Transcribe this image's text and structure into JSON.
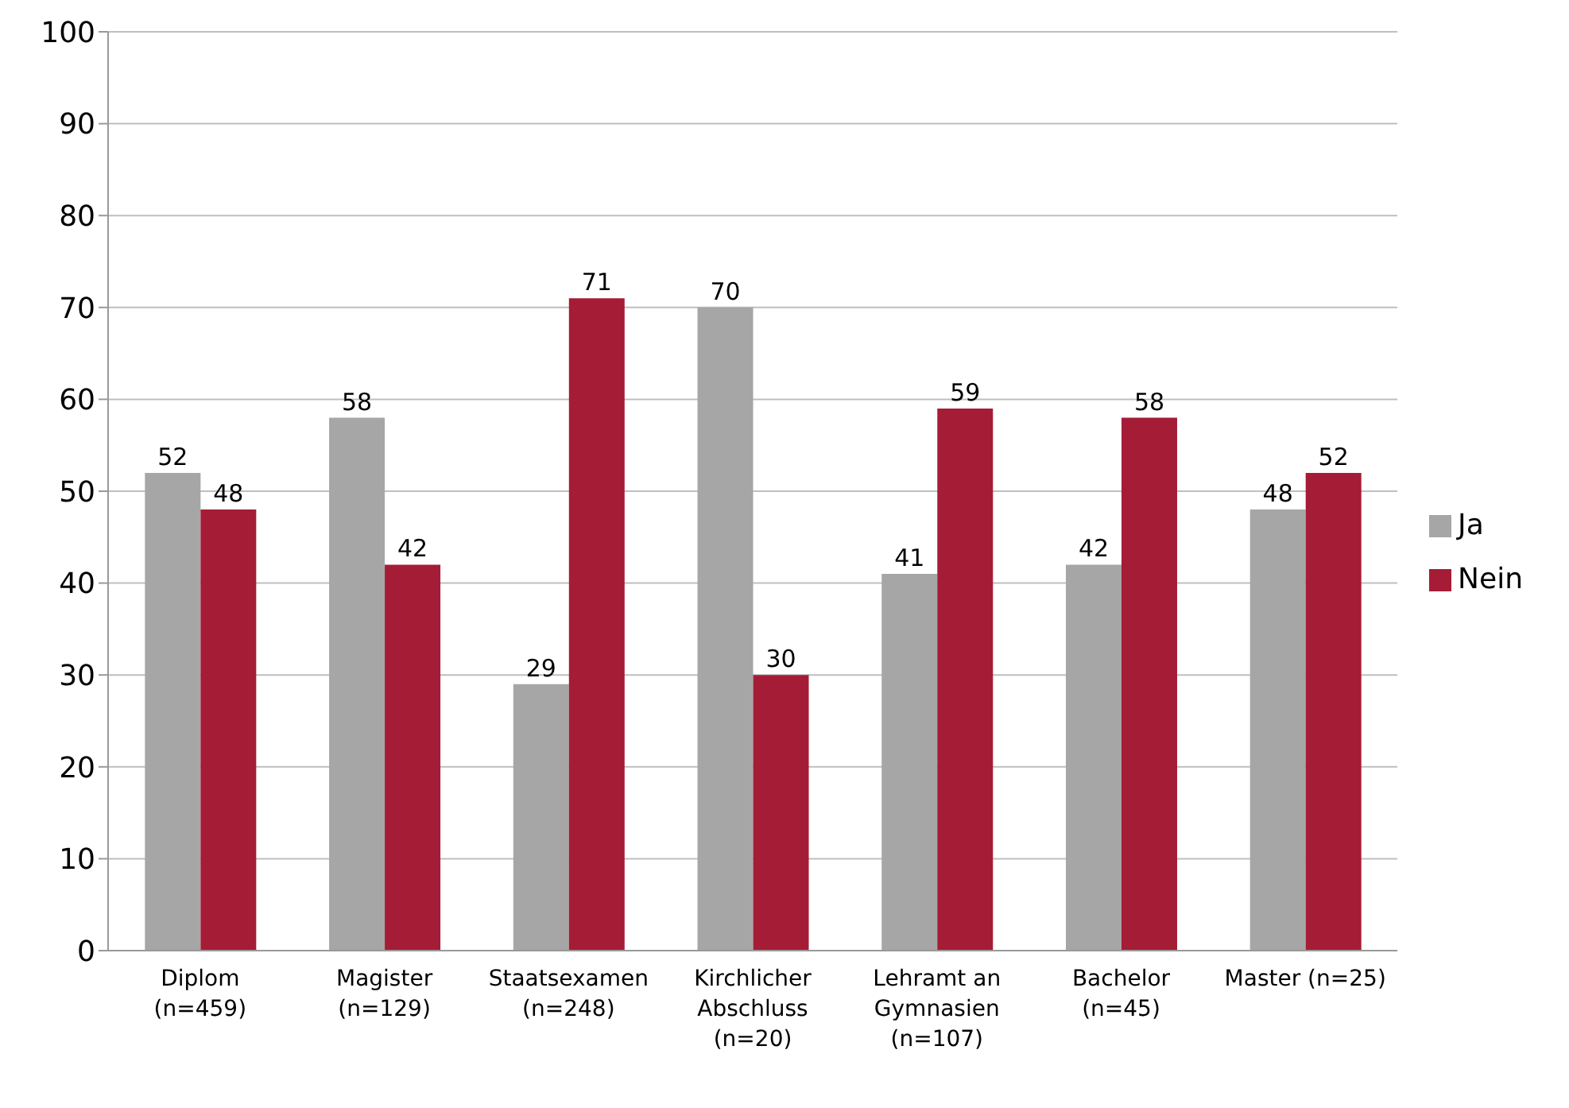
{
  "chart_data": {
    "type": "bar",
    "categories": [
      "Diplom\n(n=459)",
      "Magister\n(n=129)",
      "Staatsexamen\n(n=248)",
      "Kirchlicher\nAbschluss\n(n=20)",
      "Lehramt an\nGymnasien\n(n=107)",
      "Bachelor\n(n=45)",
      "Master (n=25)"
    ],
    "series": [
      {
        "name": "Ja",
        "color": "#a6a6a6",
        "values": [
          52,
          58,
          29,
          70,
          41,
          42,
          48
        ]
      },
      {
        "name": "Nein",
        "color": "#a51c36",
        "values": [
          48,
          42,
          71,
          30,
          59,
          58,
          52
        ]
      }
    ],
    "ylim": [
      0,
      100
    ],
    "yticks": [
      0,
      10,
      20,
      30,
      40,
      50,
      60,
      70,
      80,
      90,
      100
    ],
    "grid": "y",
    "legend": "right",
    "data_labels": true
  }
}
